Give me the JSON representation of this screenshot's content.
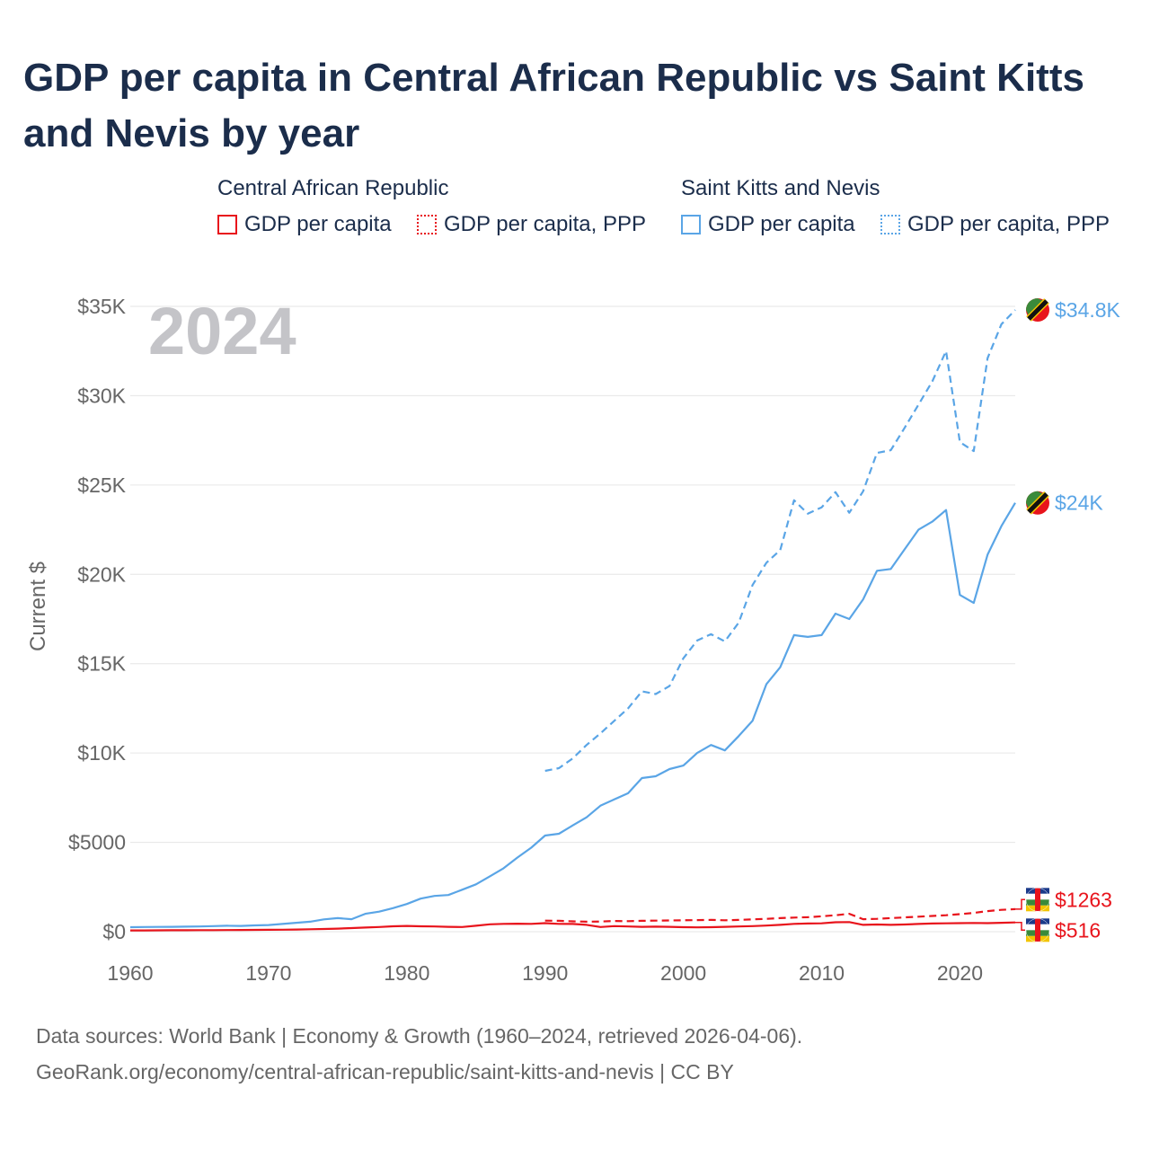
{
  "title": "GDP per capita in Central African Republic vs Saint Kitts and Nevis by year",
  "legend": {
    "groups": [
      {
        "name": "Central African Republic",
        "color": "#e8141c",
        "items": [
          {
            "label": "GDP per capita",
            "style": "solid"
          },
          {
            "label": "GDP per capita, PPP",
            "style": "dotted"
          }
        ]
      },
      {
        "name": "Saint Kitts and Nevis",
        "color": "#5aa5e6",
        "items": [
          {
            "label": "GDP per capita",
            "style": "solid"
          },
          {
            "label": "GDP per capita, PPP",
            "style": "dotted"
          }
        ]
      }
    ]
  },
  "year_watermark": "2024",
  "footer": {
    "line1": "Data sources: World Bank | Economy & Growth (1960–2024, retrieved 2026-04-06).",
    "line2": "GeoRank.org/economy/central-african-republic/saint-kitts-and-nevis | CC BY"
  },
  "chart_data": {
    "type": "line",
    "ylabel": "Current $",
    "xlabel": "",
    "xlim": [
      1960,
      2024
    ],
    "ylim": [
      0,
      35000
    ],
    "x_ticks": [
      1960,
      1970,
      1980,
      1990,
      2000,
      2010,
      2020
    ],
    "y_ticks": [
      {
        "value": 0,
        "label": "$0"
      },
      {
        "value": 5000,
        "label": "$5000"
      },
      {
        "value": 10000,
        "label": "$10K"
      },
      {
        "value": 15000,
        "label": "$15K"
      },
      {
        "value": 20000,
        "label": "$20K"
      },
      {
        "value": 25000,
        "label": "$25K"
      },
      {
        "value": 30000,
        "label": "$30K"
      },
      {
        "value": 35000,
        "label": "$35K"
      }
    ],
    "series": [
      {
        "name": "Saint Kitts and Nevis — GDP per capita, PPP",
        "color": "#5aa5e6",
        "dash": true,
        "end_label": "$34.8K",
        "x": [
          1990,
          1991,
          1992,
          1993,
          1994,
          1995,
          1996,
          1997,
          1998,
          1999,
          2000,
          2001,
          2002,
          2003,
          2004,
          2005,
          2006,
          2007,
          2008,
          2009,
          2010,
          2011,
          2012,
          2013,
          2014,
          2015,
          2016,
          2017,
          2018,
          2019,
          2020,
          2021,
          2022,
          2023,
          2024
        ],
        "values": [
          9000,
          9150,
          9700,
          10450,
          11100,
          11800,
          12500,
          13450,
          13300,
          13750,
          15300,
          16300,
          16650,
          16250,
          17300,
          19400,
          20650,
          21350,
          24150,
          23400,
          23750,
          24600,
          23450,
          24650,
          26800,
          26950,
          28200,
          29500,
          30800,
          32500,
          27400,
          26900,
          32100,
          34000,
          34800
        ]
      },
      {
        "name": "Saint Kitts and Nevis — GDP per capita",
        "color": "#5aa5e6",
        "dash": false,
        "end_label": "$24K",
        "x": [
          1960,
          1961,
          1962,
          1963,
          1964,
          1965,
          1966,
          1967,
          1968,
          1969,
          1970,
          1971,
          1972,
          1973,
          1974,
          1975,
          1976,
          1977,
          1978,
          1979,
          1980,
          1981,
          1982,
          1983,
          1984,
          1985,
          1986,
          1987,
          1988,
          1989,
          1990,
          1991,
          1992,
          1993,
          1994,
          1995,
          1996,
          1997,
          1998,
          1999,
          2000,
          2001,
          2002,
          2003,
          2004,
          2005,
          2006,
          2007,
          2008,
          2009,
          2010,
          2011,
          2012,
          2013,
          2014,
          2015,
          2016,
          2017,
          2018,
          2019,
          2020,
          2021,
          2022,
          2023,
          2024
        ],
        "values": [
          250,
          260,
          265,
          270,
          280,
          290,
          310,
          330,
          320,
          350,
          370,
          430,
          500,
          560,
          690,
          760,
          700,
          1000,
          1120,
          1320,
          1550,
          1850,
          2000,
          2050,
          2350,
          2650,
          3100,
          3550,
          4150,
          4700,
          5380,
          5480,
          5950,
          6400,
          7050,
          7400,
          7750,
          8600,
          8700,
          9100,
          9300,
          10000,
          10450,
          10150,
          10950,
          11800,
          13850,
          14800,
          16600,
          16500,
          16600,
          17800,
          17500,
          18600,
          20200,
          20300,
          21400,
          22500,
          22950,
          23600,
          18850,
          18400,
          21100,
          22700,
          24000
        ]
      },
      {
        "name": "Central African Republic — GDP per capita, PPP",
        "color": "#e8141c",
        "dash": true,
        "end_label": "$1263",
        "x": [
          1990,
          1991,
          1992,
          1993,
          1994,
          1995,
          1996,
          1997,
          1998,
          1999,
          2000,
          2001,
          2002,
          2003,
          2004,
          2005,
          2006,
          2007,
          2008,
          2009,
          2010,
          2011,
          2012,
          2013,
          2014,
          2015,
          2016,
          2017,
          2018,
          2019,
          2020,
          2021,
          2022,
          2023,
          2024
        ],
        "values": [
          620,
          610,
          580,
          560,
          570,
          600,
          590,
          610,
          620,
          630,
          640,
          650,
          660,
          640,
          660,
          690,
          720,
          760,
          790,
          810,
          860,
          920,
          1000,
          700,
          720,
          760,
          800,
          840,
          880,
          920,
          980,
          1050,
          1150,
          1220,
          1263
        ]
      },
      {
        "name": "Central African Republic — GDP per capita",
        "color": "#e8141c",
        "dash": false,
        "end_label": "$516",
        "x": [
          1960,
          1961,
          1962,
          1963,
          1964,
          1965,
          1966,
          1967,
          1968,
          1969,
          1970,
          1971,
          1972,
          1973,
          1974,
          1975,
          1976,
          1977,
          1978,
          1979,
          1980,
          1981,
          1982,
          1983,
          1984,
          1985,
          1986,
          1987,
          1988,
          1989,
          1990,
          1991,
          1992,
          1993,
          1994,
          1995,
          1996,
          1997,
          1998,
          1999,
          2000,
          2001,
          2002,
          2003,
          2004,
          2005,
          2006,
          2007,
          2008,
          2009,
          2010,
          2011,
          2012,
          2013,
          2014,
          2015,
          2016,
          2017,
          2018,
          2019,
          2020,
          2021,
          2022,
          2023,
          2024
        ],
        "values": [
          70,
          72,
          75,
          78,
          80,
          83,
          86,
          90,
          95,
          100,
          105,
          110,
          120,
          135,
          150,
          170,
          200,
          230,
          260,
          300,
          320,
          300,
          290,
          270,
          260,
          330,
          410,
          440,
          450,
          440,
          480,
          440,
          430,
          380,
          260,
          310,
          290,
          270,
          280,
          270,
          250,
          240,
          250,
          270,
          290,
          310,
          340,
          380,
          440,
          460,
          470,
          530,
          540,
          380,
          400,
          380,
          400,
          430,
          460,
          470,
          480,
          490,
          480,
          500,
          516
        ]
      }
    ]
  }
}
